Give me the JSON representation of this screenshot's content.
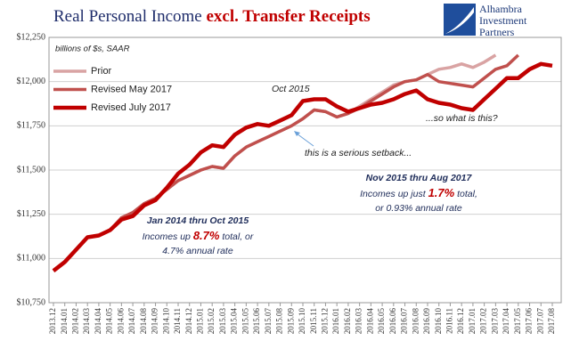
{
  "chart_data": {
    "type": "line",
    "title": {
      "main": "Real Personal Income ",
      "highlight": "excl. Transfer Receipts"
    },
    "subtitle": "billions of $s, SAAR",
    "logo": [
      "Alhambra",
      "Investment",
      "Partners"
    ],
    "categories": [
      "2013.12",
      "2014.01",
      "2014.02",
      "2014.03",
      "2014.04",
      "2014.05",
      "2014.06",
      "2014.07",
      "2014.08",
      "2014.09",
      "2014.10",
      "2014.11",
      "2014.12",
      "2015.01",
      "2015.02",
      "2015.03",
      "2015.04",
      "2015.05",
      "2015.06",
      "2015.07",
      "2015.08",
      "2015.09",
      "2015.10",
      "2015.11",
      "2015.12",
      "2016.01",
      "2016.02",
      "2016.03",
      "2016.04",
      "2016.05",
      "2016.06",
      "2016.07",
      "2016.08",
      "2016.09",
      "2016.10",
      "2016.11",
      "2016.12",
      "2017.01",
      "2017.02",
      "2017.03",
      "2017.04",
      "2017.05",
      "2017.06",
      "2017.07",
      "2017.08"
    ],
    "series": [
      {
        "name": "Prior",
        "color": "#d9a3a3",
        "width": 3.5,
        "values": [
          10930,
          10980,
          11050,
          11120,
          11130,
          11160,
          11230,
          11260,
          11310,
          11340,
          11390,
          11440,
          11470,
          11500,
          11520,
          11510,
          11580,
          11630,
          11660,
          11690,
          11720,
          11750,
          11790,
          11840,
          11830,
          11800,
          11820,
          11860,
          11900,
          11940,
          11980,
          12000,
          12010,
          12040,
          12070,
          12080,
          12100,
          12080,
          12110,
          12150,
          null,
          null,
          null,
          null,
          null
        ]
      },
      {
        "name": "Revised May 2017",
        "color": "#c0504d",
        "width": 3.5,
        "values": [
          10930,
          10980,
          11050,
          11120,
          11130,
          11160,
          11230,
          11260,
          11310,
          11340,
          11390,
          11440,
          11470,
          11500,
          11520,
          11510,
          11580,
          11630,
          11660,
          11690,
          11720,
          11750,
          11790,
          11840,
          11830,
          11800,
          11820,
          11850,
          11890,
          11930,
          11970,
          12000,
          12010,
          12040,
          12000,
          11990,
          11980,
          11970,
          12020,
          12070,
          12090,
          12150,
          null,
          null,
          null
        ]
      },
      {
        "name": "Revised July 2017",
        "color": "#c00000",
        "width": 4.5,
        "values": [
          10930,
          10980,
          11050,
          11120,
          11130,
          11160,
          11220,
          11240,
          11300,
          11330,
          11400,
          11480,
          11530,
          11600,
          11640,
          11630,
          11700,
          11740,
          11760,
          11750,
          11780,
          11810,
          11890,
          11900,
          11900,
          11860,
          11830,
          11850,
          11870,
          11880,
          11900,
          11930,
          11950,
          11900,
          11880,
          11870,
          11850,
          11840,
          11900,
          11960,
          12020,
          12020,
          12070,
          12100,
          12090
        ]
      }
    ],
    "ylim": [
      10750,
      12250
    ],
    "yticks": [
      {
        "value": 10750,
        "label": "$10,750"
      },
      {
        "value": 11000,
        "label": "$11,000"
      },
      {
        "value": 11250,
        "label": "$11,250"
      },
      {
        "value": 11500,
        "label": "$11,500"
      },
      {
        "value": 11750,
        "label": "$11,750"
      },
      {
        "value": 12000,
        "label": "$12,000"
      },
      {
        "value": 12250,
        "label": "$12,250"
      }
    ],
    "grid": true,
    "legend": "upper left",
    "annotations": {
      "oct": "Oct 2015",
      "setback": "this is a serious setback...",
      "what": "...so what is this?",
      "late": {
        "head": "Nov 2015 thru Aug 2017",
        "pre": "Incomes up just ",
        "pct": "1.7%",
        "post": " total,",
        "line2": "or 0.93% annual rate"
      },
      "early": {
        "head": "Jan 2014 thru Oct 2015",
        "pre": "Incomes up ",
        "pct": "8.7%",
        "post": " total, or",
        "line2": "4.7% annual rate"
      }
    }
  }
}
